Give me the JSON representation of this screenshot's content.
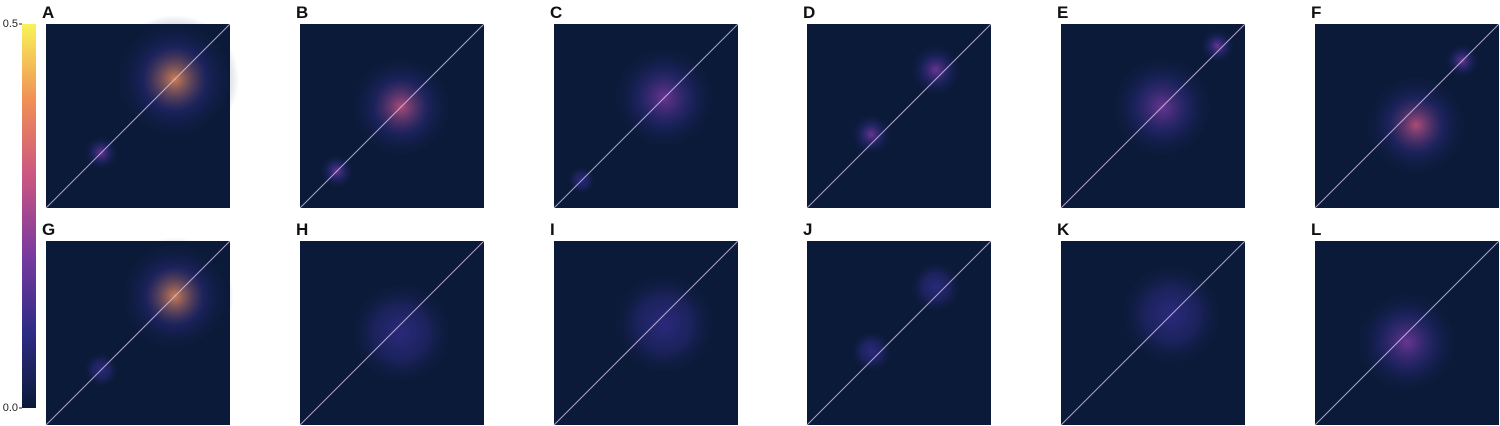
{
  "chart_data": {
    "type": "heatmap",
    "panels": [
      "A",
      "B",
      "C",
      "D",
      "E",
      "F",
      "G",
      "H",
      "I",
      "J",
      "K",
      "L"
    ],
    "colorbar": {
      "lim": [
        0,
        0.5
      ],
      "ticks": [
        {
          "value": 0,
          "label": "0.0"
        },
        0.5
      ],
      "colors": [
        "#0b1a38",
        "#2f2c86",
        "#7a3aa0",
        "#c95582",
        "#f08f55",
        "#f7f35a"
      ]
    }
  }
}
